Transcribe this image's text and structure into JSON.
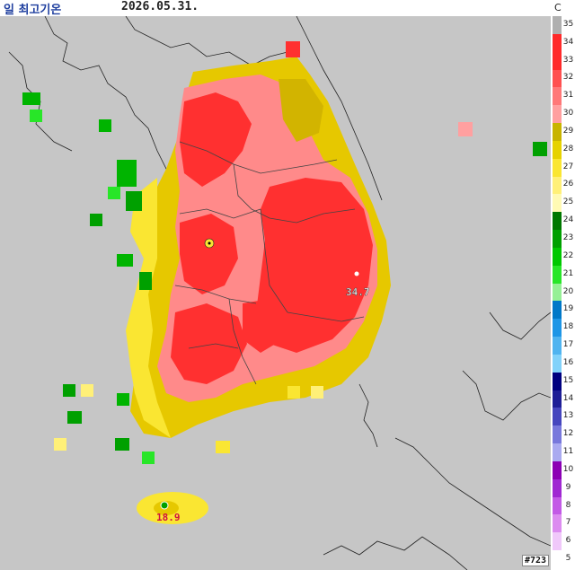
{
  "header": {
    "title": "일 최고기온",
    "date": "2026.05.31."
  },
  "legend": {
    "unit": "C",
    "levels": [
      {
        "label": "35",
        "color": "#b0b0b0"
      },
      {
        "label": "34",
        "color": "#ff2a2a"
      },
      {
        "label": "33",
        "color": "#ff2a2a"
      },
      {
        "label": "32",
        "color": "#ff5050"
      },
      {
        "label": "31",
        "color": "#ff7878"
      },
      {
        "label": "30",
        "color": "#ffa0a0"
      },
      {
        "label": "29",
        "color": "#c8b400"
      },
      {
        "label": "28",
        "color": "#e6d200"
      },
      {
        "label": "27",
        "color": "#fae632"
      },
      {
        "label": "26",
        "color": "#fff078"
      },
      {
        "label": "25",
        "color": "#fffab4"
      },
      {
        "label": "24",
        "color": "#007800"
      },
      {
        "label": "23",
        "color": "#00a000"
      },
      {
        "label": "22",
        "color": "#00c800"
      },
      {
        "label": "21",
        "color": "#28e628"
      },
      {
        "label": "20",
        "color": "#96f096"
      },
      {
        "label": "19",
        "color": "#0078c8"
      },
      {
        "label": "18",
        "color": "#1e96e6"
      },
      {
        "label": "17",
        "color": "#50b4f0"
      },
      {
        "label": "16",
        "color": "#82d2fa"
      },
      {
        "label": "15",
        "color": "#000080"
      },
      {
        "label": "14",
        "color": "#1e1e96"
      },
      {
        "label": "13",
        "color": "#4646be"
      },
      {
        "label": "12",
        "color": "#7878dc"
      },
      {
        "label": "11",
        "color": "#aaaaf0"
      },
      {
        "label": "10",
        "color": "#8c00b4"
      },
      {
        "label": "9",
        "color": "#a028d2"
      },
      {
        "label": "8",
        "color": "#c35ae6"
      },
      {
        "label": "7",
        "color": "#dc8cf0"
      },
      {
        "label": "6",
        "color": "#f0c8fa"
      },
      {
        "label": "5",
        "color": "#ffffff"
      }
    ]
  },
  "annotations": {
    "max_value": "34.7",
    "min_value": "18.9"
  },
  "footer": {
    "count": "#723"
  },
  "colors": {
    "background": "#c6c6c6",
    "hot": "#ff2a2a",
    "warm": "#ffa0a0",
    "mild": "#e6d200",
    "cool": "#00a000"
  }
}
